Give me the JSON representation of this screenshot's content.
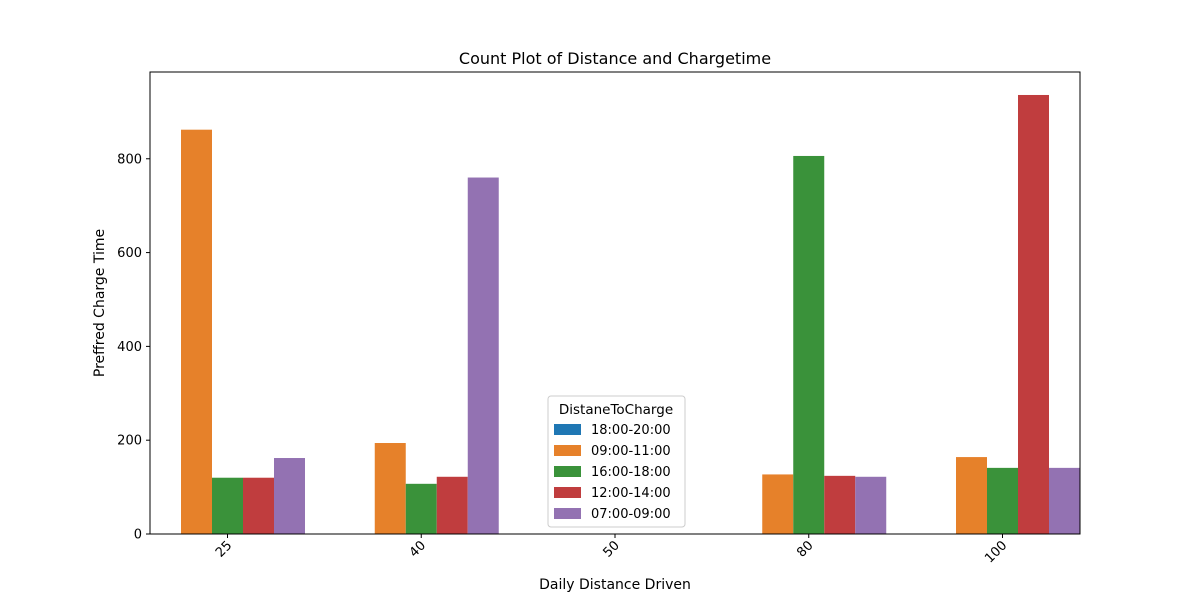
{
  "chart_data": {
    "type": "bar",
    "title": "Count Plot of Distance and Chargetime",
    "xlabel": "Daily Distance Driven",
    "ylabel": "Preffred Charge Time",
    "categories": [
      "25",
      "40",
      "50",
      "80",
      "100"
    ],
    "ylim": [
      0,
      985
    ],
    "yticks": [
      0,
      200,
      400,
      600,
      800
    ],
    "legend": {
      "title": "DistaneToCharge",
      "placement": "lower-center"
    },
    "series": [
      {
        "name": "18:00-20:00",
        "color": "#1f77b4",
        "values": [
          0,
          0,
          0,
          0,
          0
        ]
      },
      {
        "name": "09:00-11:00",
        "color": "#e6812a",
        "values": [
          862,
          194,
          0,
          127,
          164
        ]
      },
      {
        "name": "16:00-18:00",
        "color": "#3a923a",
        "values": [
          120,
          107,
          0,
          806,
          141
        ]
      },
      {
        "name": "12:00-14:00",
        "color": "#c03d3e",
        "values": [
          120,
          122,
          0,
          124,
          936
        ]
      },
      {
        "name": "07:00-09:00",
        "color": "#9372b2",
        "values": [
          162,
          760,
          0,
          122,
          141
        ]
      }
    ]
  }
}
